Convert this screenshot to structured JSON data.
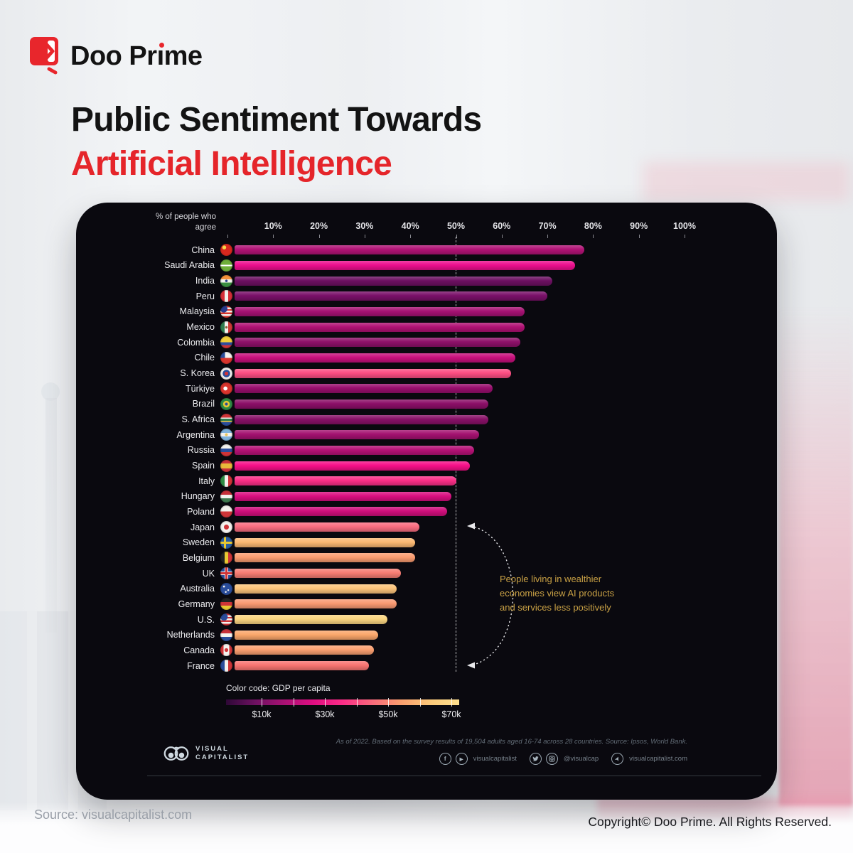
{
  "header": {
    "brand_name": "Doo Prime",
    "brand_parts": {
      "left": "Doo Pr",
      "dotless_i": "ı",
      "right": "me"
    },
    "title_line1": "Public Sentiment Towards",
    "title_line2": "Artificial Intelligence",
    "accent_color": "#e5252a"
  },
  "footer": {
    "source": "Source: visualcapitalist.com",
    "copyright": "Copyright© Doo Prime. All Rights Reserved."
  },
  "chart_data": {
    "type": "bar",
    "orientation": "horizontal",
    "axis_title": "% of people who agree",
    "x_ticks": [
      "10%",
      "20%",
      "30%",
      "40%",
      "50%",
      "60%",
      "70%",
      "80%",
      "90%",
      "100%"
    ],
    "xlim": [
      0,
      100
    ],
    "grid": false,
    "reference_line_pct": 50,
    "annotation": "People living in wealthier economies view AI products and services less positively",
    "annotation_color": "#c9a145",
    "categories": [
      "China",
      "Saudi Arabia",
      "India",
      "Peru",
      "Malaysia",
      "Mexico",
      "Colombia",
      "Chile",
      "S. Korea",
      "Türkiye",
      "Brazil",
      "S. Africa",
      "Argentina",
      "Russia",
      "Spain",
      "Italy",
      "Hungary",
      "Poland",
      "Japan",
      "Sweden",
      "Belgium",
      "UK",
      "Australia",
      "Germany",
      "U.S.",
      "Netherlands",
      "Canada",
      "France"
    ],
    "values": [
      78,
      76,
      71,
      70,
      65,
      65,
      64,
      63,
      62,
      58,
      57,
      57,
      55,
      54,
      53,
      50,
      49,
      48,
      42,
      41,
      41,
      38,
      37,
      37,
      35,
      33,
      32,
      31
    ],
    "bar_colors": [
      "#b11275",
      "#ee0e8e",
      "#6d1062",
      "#7a1069",
      "#a61173",
      "#b01174",
      "#8e1069",
      "#c70f7c",
      "#fd4d82",
      "#980e6d",
      "#8c0f68",
      "#881067",
      "#a41170",
      "#b61176",
      "#f70f88",
      "#fb2e87",
      "#da0e80",
      "#d10e7c",
      "#f96d80",
      "#fbb872",
      "#fa9c70",
      "#f87d73",
      "#fcc47b",
      "#fa9a72",
      "#fcd681",
      "#fba76b",
      "#fa9f70",
      "#f97471"
    ],
    "flags": [
      "radial-gradient(circle at 32% 30%, #f8d64b 0 2.5px, rgba(0,0,0,0) 3px), #d8281e",
      "linear-gradient(180deg, rgba(0,0,0,0) 44%, #ffffff 44% 56%, rgba(0,0,0,0) 56%), #6fae3a",
      "radial-gradient(circle at 50% 48%, #2b3f8c 0 1.5px, rgba(0,0,0,0) 2px), linear-gradient(180deg, #f5933c 34%, #f4f4f0 34% 62%, #3a8e3f 62%)",
      "linear-gradient(90deg, #d62e38 34%, #f2f0ec 34% 66%, #d62e38 66%)",
      "radial-gradient(circle at 28% 26%, #2a3a8c 0 5px, rgba(0,0,0,0) 5.5px), repeating-linear-gradient(180deg, #d8342c 0 2.4px, #f4f2ee 2.4px 4.8px)",
      "radial-gradient(circle at 50% 50%, #8a6238 0 1.5px, rgba(0,0,0,0) 2px), linear-gradient(90deg, #2f7d4f 34%, #f4f2ee 34% 66%, #cf3a37 66%)",
      "linear-gradient(180deg, #f2ce3a 50%, #2f4d9e 50% 75%, #cf3438 75%)",
      "linear-gradient(180deg, rgba(0,0,0,0) 50%, #d8342c 50%), linear-gradient(90deg, #2a4d9b 0 38%, #f4f2ee 38%)",
      "radial-gradient(circle at 50% 50%, #cf3438 0 2.6px, #2a4d9b 2.6px 5px, rgba(0,0,0,0) 5.5px), #f4f2ee",
      "radial-gradient(circle at 42% 50%, #ffffff 0 2.6px, rgba(0,0,0,0) 3px), #d8342c",
      "radial-gradient(circle at 50% 50%, #2a4d9b 0 2px, #e8c832 2px 4.4px, rgba(0,0,0,0) 4.8px), #2f8c44",
      "linear-gradient(180deg, #cf3438 32%, #f4f2ee 32% 40%, #2f7d4f 40% 60%, #f2ce3a 60% 68%, #2a4d9b 68%)",
      "radial-gradient(circle at 50% 50%, #e8c75a 0 1.8px, rgba(0,0,0,0) 2.2px), linear-gradient(180deg, #7fb3dc 34%, #f4f2ee 34% 66%, #7fb3dc 66%)",
      "linear-gradient(180deg, #f4f2ee 34%, #2a4d9b 34% 66%, #cf3438 66%)",
      "linear-gradient(180deg, #c8313a 28%, #e8b93a 28% 72%, #c8313a 72%)",
      "linear-gradient(90deg, #2f8c44 34%, #f4f2ee 34% 66%, #cf3438 66%)",
      "linear-gradient(180deg, #c8313a 34%, #f4f2ee 34% 66%, #3f7a4f 66%)",
      "linear-gradient(180deg, #f4f2ee 50%, #cf3438 50%)",
      "radial-gradient(circle at 50% 50%, #cf3438 0 3.2px, rgba(0,0,0,0) 3.8px), #f4f2ee",
      "linear-gradient(90deg, rgba(0,0,0,0) 30%, #e8c832 30% 46%, rgba(0,0,0,0) 46%), linear-gradient(180deg, rgba(0,0,0,0) 42%, #e8c832 42% 58%, rgba(0,0,0,0) 58%), #2a5da0",
      "linear-gradient(90deg, #222222 34%, #e8c832 34% 66%, #cf3438 66%)",
      "linear-gradient(180deg, rgba(0,0,0,0) 42%, #cf3438 42% 58%, rgba(0,0,0,0) 58%), linear-gradient(90deg, rgba(0,0,0,0) 42%, #cf3438 42% 58%, rgba(0,0,0,0) 58%), linear-gradient(180deg, rgba(0,0,0,0) 36%, #f4f2ee 36% 64%, rgba(0,0,0,0) 64%), linear-gradient(90deg, rgba(0,0,0,0) 36%, #f4f2ee 36% 64%, rgba(0,0,0,0) 64%), #2a4d9b",
      "radial-gradient(circle at 30% 30%, #f4f2ee 0 1.2px, rgba(0,0,0,0) 1.6px), radial-gradient(circle at 65% 60%, #f4f2ee 0 1px, rgba(0,0,0,0) 1.4px), radial-gradient(circle at 45% 75%, #f4f2ee 0 1px, rgba(0,0,0,0) 1.4px), #2a4d9b",
      "linear-gradient(180deg, #222222 34%, #cf3438 34% 66%, #e8c832 66%)",
      "radial-gradient(circle at 30% 28%, #2a4d9b 0 5px, rgba(0,0,0,0) 5.5px), repeating-linear-gradient(180deg, #cf3438 0 2.4px, #f4f2ee 2.4px 4.8px)",
      "linear-gradient(180deg, #c8313a 34%, #f4f2ee 34% 66%, #2a4d9b 66%)",
      "radial-gradient(circle at 50% 50%, #cf3438 0 2.4px, rgba(0,0,0,0) 2.8px), linear-gradient(90deg, #cf3438 26%, #f4f2ee 26% 74%, #cf3438 74%)",
      "linear-gradient(90deg, #2a4d9b 34%, #f4f2ee 34% 66%, #cf3438 66%)"
    ],
    "legend": {
      "label": "Color code: GDP per capita",
      "tick_labels": [
        "$10k",
        "$30k",
        "$50k",
        "$70k"
      ],
      "gradient": [
        "#2e0836",
        "#6d1161",
        "#a81173",
        "#e00e82",
        "#fb2d87",
        "#f9697c",
        "#fa9e6e",
        "#fcc97a",
        "#fddf8d"
      ]
    },
    "footnote": "As of 2022. Based on the survey results of 19,504 adults aged 16-74 across 28 countries. Source: Ipsos, World Bank.",
    "publisher": {
      "logo_line1": "VISUAL",
      "logo_line2": "CAPITALIST",
      "social": [
        {
          "icons": [
            "facebook-icon",
            "youtube-icon"
          ],
          "label": "visualcapitalist"
        },
        {
          "icons": [
            "twitter-icon",
            "instagram-icon"
          ],
          "label": "@visualcap"
        },
        {
          "icons": [
            "cursor-icon"
          ],
          "label": "visualcapitalist.com"
        }
      ]
    }
  }
}
